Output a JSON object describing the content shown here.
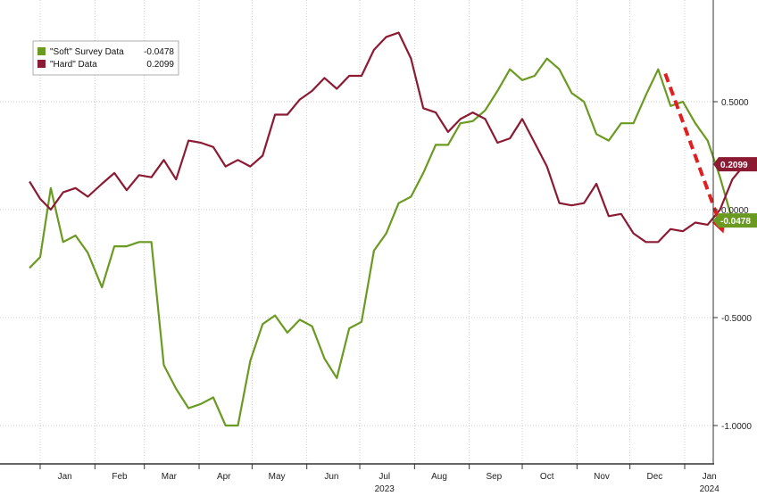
{
  "chart_data": {
    "type": "line",
    "title": "",
    "xlabel": "",
    "ylabel": "",
    "ylim": [
      -1.1,
      0.95
    ],
    "y_ticks": [
      0.5,
      0.0,
      -0.5,
      -1.0
    ],
    "y_tick_labels": [
      "0.5000",
      "0.0000",
      "-0.5000",
      "-1.0000"
    ],
    "grid": "dotted",
    "legend_position": "top-left",
    "x_start": "2023-01-01",
    "x_months": [
      "Jan",
      "Feb",
      "Mar",
      "Apr",
      "May",
      "Jun",
      "Jul",
      "Aug",
      "Sep",
      "Oct",
      "Nov",
      "Dec",
      "Jan"
    ],
    "x_years": [
      {
        "label": "2023",
        "month_index": 6
      },
      {
        "label": "2024",
        "month_index": 12
      }
    ],
    "series": [
      {
        "name": "\"Soft\" Survey Data",
        "last_value_label": "-0.0478",
        "color": "#6a9a22",
        "points": [
          [
            "2022-12-26",
            -0.27
          ],
          [
            "2023-01-01",
            -0.22
          ],
          [
            "2023-01-07",
            0.1
          ],
          [
            "2023-01-14",
            -0.15
          ],
          [
            "2023-01-21",
            -0.12
          ],
          [
            "2023-01-28",
            -0.2
          ],
          [
            "2023-02-05",
            -0.36
          ],
          [
            "2023-02-12",
            -0.17
          ],
          [
            "2023-02-19",
            -0.17
          ],
          [
            "2023-02-26",
            -0.15
          ],
          [
            "2023-03-05",
            -0.15
          ],
          [
            "2023-03-12",
            -0.72
          ],
          [
            "2023-03-19",
            -0.83
          ],
          [
            "2023-03-26",
            -0.92
          ],
          [
            "2023-04-02",
            -0.9
          ],
          [
            "2023-04-09",
            -0.87
          ],
          [
            "2023-04-16",
            -1.0
          ],
          [
            "2023-04-23",
            -1.0
          ],
          [
            "2023-04-30",
            -0.7
          ],
          [
            "2023-05-07",
            -0.53
          ],
          [
            "2023-05-14",
            -0.49
          ],
          [
            "2023-05-21",
            -0.57
          ],
          [
            "2023-05-28",
            -0.51
          ],
          [
            "2023-06-04",
            -0.54
          ],
          [
            "2023-06-11",
            -0.69
          ],
          [
            "2023-06-18",
            -0.78
          ],
          [
            "2023-06-25",
            -0.55
          ],
          [
            "2023-07-02",
            -0.52
          ],
          [
            "2023-07-09",
            -0.19
          ],
          [
            "2023-07-16",
            -0.11
          ],
          [
            "2023-07-23",
            0.03
          ],
          [
            "2023-07-30",
            0.06
          ],
          [
            "2023-08-06",
            0.17
          ],
          [
            "2023-08-13",
            0.3
          ],
          [
            "2023-08-20",
            0.3
          ],
          [
            "2023-08-27",
            0.4
          ],
          [
            "2023-09-03",
            0.41
          ],
          [
            "2023-09-10",
            0.46
          ],
          [
            "2023-09-17",
            0.55
          ],
          [
            "2023-09-24",
            0.65
          ],
          [
            "2023-10-01",
            0.6
          ],
          [
            "2023-10-08",
            0.62
          ],
          [
            "2023-10-15",
            0.7
          ],
          [
            "2023-10-22",
            0.65
          ],
          [
            "2023-10-29",
            0.54
          ],
          [
            "2023-11-05",
            0.5
          ],
          [
            "2023-11-12",
            0.35
          ],
          [
            "2023-11-19",
            0.32
          ],
          [
            "2023-11-26",
            0.4
          ],
          [
            "2023-12-03",
            0.4
          ],
          [
            "2023-12-10",
            0.53
          ],
          [
            "2023-12-17",
            0.65
          ],
          [
            "2023-12-24",
            0.48
          ],
          [
            "2023-12-31",
            0.5
          ],
          [
            "2024-01-07",
            0.4
          ],
          [
            "2024-01-14",
            0.32
          ],
          [
            "2024-01-21",
            0.15
          ],
          [
            "2024-01-28",
            -0.05
          ]
        ]
      },
      {
        "name": "\"Hard\" Data",
        "last_value_label": "0.2099",
        "color": "#8b1a33",
        "points": [
          [
            "2022-12-26",
            0.13
          ],
          [
            "2023-01-01",
            0.05
          ],
          [
            "2023-01-07",
            0.0
          ],
          [
            "2023-01-14",
            0.08
          ],
          [
            "2023-01-21",
            0.1
          ],
          [
            "2023-01-28",
            0.06
          ],
          [
            "2023-02-05",
            0.12
          ],
          [
            "2023-02-12",
            0.17
          ],
          [
            "2023-02-19",
            0.09
          ],
          [
            "2023-02-26",
            0.16
          ],
          [
            "2023-03-05",
            0.15
          ],
          [
            "2023-03-12",
            0.23
          ],
          [
            "2023-03-19",
            0.14
          ],
          [
            "2023-03-26",
            0.32
          ],
          [
            "2023-04-02",
            0.31
          ],
          [
            "2023-04-09",
            0.29
          ],
          [
            "2023-04-16",
            0.2
          ],
          [
            "2023-04-23",
            0.23
          ],
          [
            "2023-04-30",
            0.2
          ],
          [
            "2023-05-07",
            0.25
          ],
          [
            "2023-05-14",
            0.44
          ],
          [
            "2023-05-21",
            0.44
          ],
          [
            "2023-05-28",
            0.51
          ],
          [
            "2023-06-04",
            0.55
          ],
          [
            "2023-06-11",
            0.61
          ],
          [
            "2023-06-18",
            0.56
          ],
          [
            "2023-06-25",
            0.62
          ],
          [
            "2023-07-02",
            0.62
          ],
          [
            "2023-07-09",
            0.74
          ],
          [
            "2023-07-16",
            0.8
          ],
          [
            "2023-07-23",
            0.82
          ],
          [
            "2023-07-30",
            0.7
          ],
          [
            "2023-08-06",
            0.47
          ],
          [
            "2023-08-13",
            0.45
          ],
          [
            "2023-08-20",
            0.36
          ],
          [
            "2023-08-27",
            0.42
          ],
          [
            "2023-09-03",
            0.45
          ],
          [
            "2023-09-10",
            0.42
          ],
          [
            "2023-09-17",
            0.31
          ],
          [
            "2023-09-24",
            0.33
          ],
          [
            "2023-10-01",
            0.42
          ],
          [
            "2023-10-08",
            0.31
          ],
          [
            "2023-10-15",
            0.2
          ],
          [
            "2023-10-22",
            0.03
          ],
          [
            "2023-10-29",
            0.02
          ],
          [
            "2023-11-05",
            0.03
          ],
          [
            "2023-11-12",
            0.12
          ],
          [
            "2023-11-19",
            -0.03
          ],
          [
            "2023-11-26",
            -0.02
          ],
          [
            "2023-12-03",
            -0.11
          ],
          [
            "2023-12-10",
            -0.15
          ],
          [
            "2023-12-17",
            -0.15
          ],
          [
            "2023-12-24",
            -0.09
          ],
          [
            "2023-12-31",
            -0.1
          ],
          [
            "2024-01-07",
            -0.06
          ],
          [
            "2024-01-14",
            -0.07
          ],
          [
            "2024-01-21",
            0.0
          ],
          [
            "2024-01-28",
            0.14
          ],
          [
            "2024-02-04",
            0.21
          ]
        ]
      }
    ],
    "annotation": {
      "type": "dashed-arrow",
      "color": "#e02020",
      "from": [
        "2023-12-21",
        0.63
      ],
      "to": [
        "2024-01-23",
        -0.11
      ]
    }
  }
}
